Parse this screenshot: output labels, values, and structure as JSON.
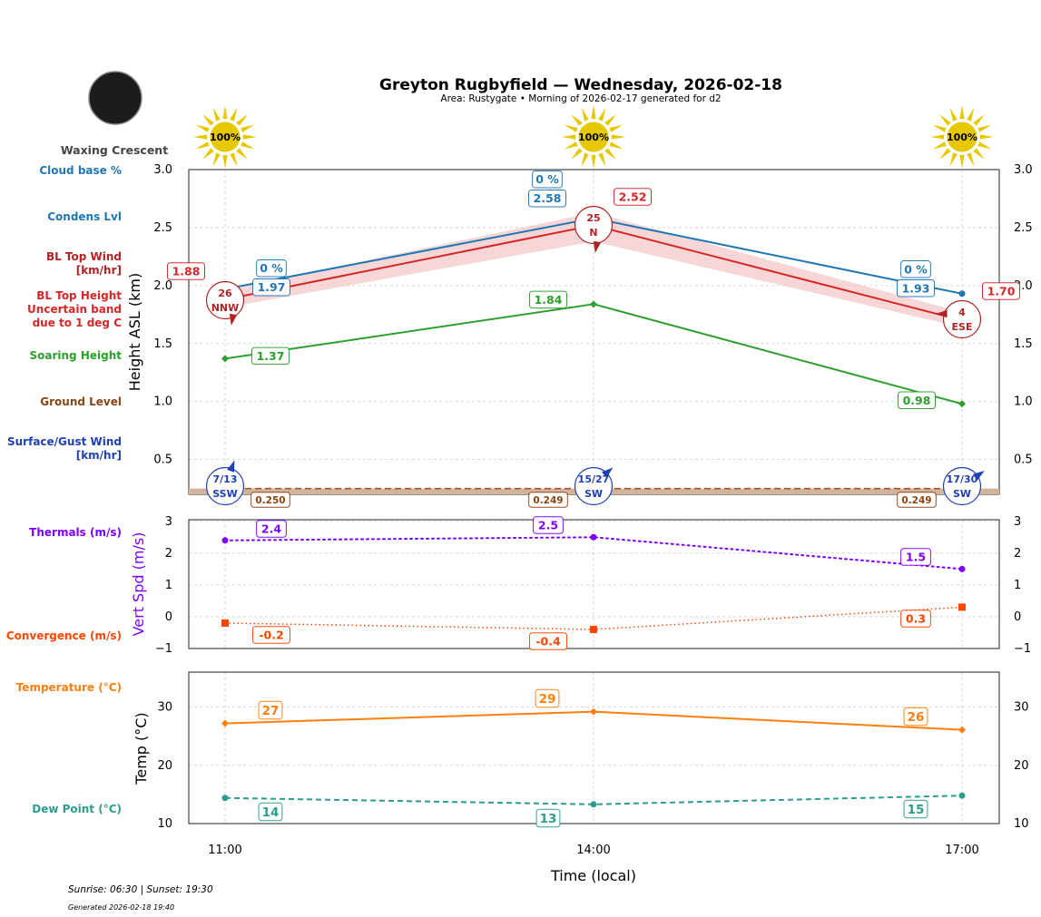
{
  "header": {
    "title": "Greyton Rugbyfield — Wednesday, 2026-02-18",
    "subtitle": "Area: Rustygate • Morning of 2026-02-17 generated for d2",
    "moon_phase": "Waxing Crescent"
  },
  "footer": {
    "sun_times": "Sunrise: 06:30 | Sunset: 19:30",
    "generated": "Generated 2026-02-18 19:40"
  },
  "colors": {
    "condens": "#1f77b4",
    "bl_top": "#d62728",
    "band": "#f4c4c6",
    "soaring": "#2ca02c",
    "ground": "#8b4513",
    "surface_wind": "#1f3fb4",
    "thermals": "#8000ff",
    "convergence": "#ff4500",
    "temperature": "#ff7f0e",
    "dew": "#2a9d8f",
    "sun": "#e6c800"
  },
  "side_labels": {
    "cloud_base": "Cloud base %",
    "condens": "Condens Lvl",
    "bl_wind": [
      "BL Top Wind",
      "[km/hr]"
    ],
    "bl_height": [
      "BL Top Height",
      "Uncertain band",
      "due to 1 deg C"
    ],
    "soaring": "Soaring Height",
    "ground": "Ground Level",
    "surface_wind": [
      "Surface/Gust Wind",
      "[km/hr]"
    ],
    "thermals": "Thermals (m/s)",
    "convergence": "Convergence (m/s)",
    "temperature": "Temperature (°C)",
    "dew": "Dew Point (°C)"
  },
  "chart_data": [
    {
      "type": "line",
      "ylabel": "Height ASL (km)",
      "ylim": [
        0.2,
        3.0
      ],
      "yticks": [
        "0.5",
        "1.0",
        "1.5",
        "2.0",
        "2.5",
        "3.0"
      ],
      "grid": true,
      "x": [
        "11:00",
        "14:00",
        "17:00"
      ],
      "sun_percent": [
        "100%",
        "100%",
        "100%"
      ],
      "series": {
        "condens": {
          "values": [
            1.97,
            2.58,
            1.93
          ],
          "labels": [
            "1.97",
            "2.58",
            "1.93"
          ]
        },
        "cloud_base_pct": [
          "0 %",
          "0 %",
          "0 %"
        ],
        "bl_top": {
          "values": [
            1.88,
            2.52,
            1.7
          ],
          "labels": [
            "1.88",
            "2.52",
            "1.70"
          ],
          "band_low": [
            1.81,
            2.38,
            1.64
          ],
          "band_high": [
            1.96,
            2.63,
            1.77
          ]
        },
        "bl_wind": [
          {
            "speed": "26",
            "dir": "NNW"
          },
          {
            "speed": "25",
            "dir": "N"
          },
          {
            "speed": "4",
            "dir": "ESE"
          }
        ],
        "soaring": {
          "values": [
            1.37,
            1.84,
            0.98
          ],
          "labels": [
            "1.37",
            "1.84",
            "0.98"
          ]
        },
        "ground": {
          "values": [
            0.25,
            0.249,
            0.249
          ],
          "labels": [
            "0.250",
            "0.249",
            "0.249"
          ]
        },
        "surface_wind": [
          {
            "speed": "7/13",
            "dir": "SSW"
          },
          {
            "speed": "15/27",
            "dir": "SW"
          },
          {
            "speed": "17/30",
            "dir": "SW"
          }
        ]
      }
    },
    {
      "type": "line",
      "ylabel": "Vert Spd (m/s)",
      "ylim": [
        -1,
        3.05
      ],
      "yticks": [
        "−1",
        "0",
        "1",
        "2",
        "3"
      ],
      "grid": true,
      "x": [
        "11:00",
        "14:00",
        "17:00"
      ],
      "series": {
        "thermals": {
          "values": [
            2.4,
            2.5,
            1.5
          ],
          "labels": [
            "2.4",
            "2.5",
            "1.5"
          ]
        },
        "convergence": {
          "values": [
            -0.2,
            -0.4,
            0.3
          ],
          "labels": [
            "-0.2",
            "-0.4",
            "0.3"
          ]
        }
      }
    },
    {
      "type": "line",
      "ylabel": "Temp (°C)",
      "xlabel": "Time (local)",
      "ylim": [
        10,
        36
      ],
      "yticks": [
        "10",
        "20",
        "30"
      ],
      "grid": true,
      "x": [
        "11:00",
        "14:00",
        "17:00"
      ],
      "series": {
        "temperature": {
          "values": [
            27.2,
            29.2,
            26.1
          ],
          "labels": [
            "27",
            "29",
            "26"
          ]
        },
        "dew": {
          "values": [
            14.4,
            13.3,
            14.8
          ],
          "labels": [
            "14",
            "13",
            "15"
          ]
        }
      }
    }
  ]
}
